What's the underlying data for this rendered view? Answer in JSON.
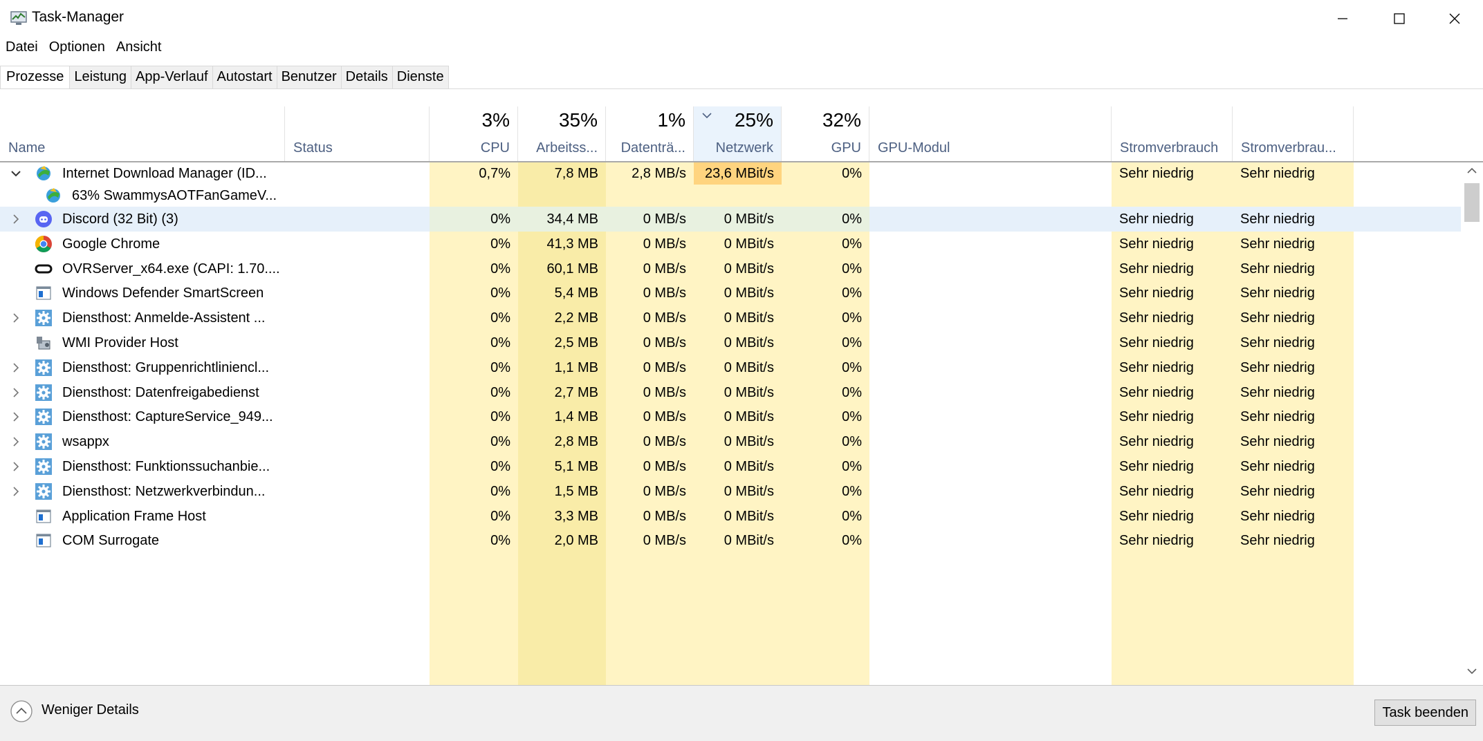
{
  "window": {
    "title": "Task-Manager",
    "icons": {
      "app": "task-manager-icon",
      "minimize": "minimize-icon",
      "maximize": "maximize-icon",
      "close": "close-icon"
    }
  },
  "menu": [
    "Datei",
    "Optionen",
    "Ansicht"
  ],
  "tabs": [
    "Prozesse",
    "Leistung",
    "App-Verlauf",
    "Autostart",
    "Benutzer",
    "Details",
    "Dienste"
  ],
  "active_tab": "Prozesse",
  "columns": {
    "name": {
      "label": "Name"
    },
    "status": {
      "label": "Status"
    },
    "cpu": {
      "label": "CPU",
      "pct": "3%"
    },
    "mem": {
      "label": "Arbeitss...",
      "pct": "35%"
    },
    "disk": {
      "label": "Datenträ...",
      "pct": "1%"
    },
    "net": {
      "label": "Netzwerk",
      "pct": "25%",
      "sorted": "descending"
    },
    "gpu": {
      "label": "GPU",
      "pct": "32%"
    },
    "gpuengine": {
      "label": "GPU-Modul"
    },
    "power": {
      "label": "Stromverbrauch"
    },
    "powertrend": {
      "label": "Stromverbrau..."
    }
  },
  "rows": [
    {
      "name": "Internet Download Manager (ID...",
      "expanded": true,
      "icon": "idm-icon",
      "cpu": "0,7%",
      "mem": "7,8 MB",
      "disk": "2,8 MB/s",
      "net": "23,6 MBit/s",
      "gpu": "0%",
      "power": "Sehr niedrig",
      "powertrend": "Sehr niedrig",
      "highlight": true
    },
    {
      "name": "63% SwammysAOTFanGameV...",
      "child": true,
      "icon": "idm-icon"
    },
    {
      "name": "Discord (32 Bit) (3)",
      "expandable": true,
      "icon": "discord-icon",
      "cpu": "0%",
      "mem": "34,4 MB",
      "disk": "0 MB/s",
      "net": "0 MBit/s",
      "gpu": "0%",
      "power": "Sehr niedrig",
      "powertrend": "Sehr niedrig",
      "selected": true
    },
    {
      "name": "Google Chrome",
      "icon": "chrome-icon",
      "cpu": "0%",
      "mem": "41,3 MB",
      "disk": "0 MB/s",
      "net": "0 MBit/s",
      "gpu": "0%",
      "power": "Sehr niedrig",
      "powertrend": "Sehr niedrig"
    },
    {
      "name": "OVRServer_x64.exe (CAPI: 1.70....",
      "icon": "oculus-icon",
      "cpu": "0%",
      "mem": "60,1 MB",
      "disk": "0 MB/s",
      "net": "0 MBit/s",
      "gpu": "0%",
      "power": "Sehr niedrig",
      "powertrend": "Sehr niedrig"
    },
    {
      "name": "Windows Defender SmartScreen",
      "icon": "window-icon",
      "cpu": "0%",
      "mem": "5,4 MB",
      "disk": "0 MB/s",
      "net": "0 MBit/s",
      "gpu": "0%",
      "power": "Sehr niedrig",
      "powertrend": "Sehr niedrig"
    },
    {
      "name": "Diensthost: Anmelde-Assistent ...",
      "expandable": true,
      "icon": "service-gear-icon",
      "cpu": "0%",
      "mem": "2,2 MB",
      "disk": "0 MB/s",
      "net": "0 MBit/s",
      "gpu": "0%",
      "power": "Sehr niedrig",
      "powertrend": "Sehr niedrig"
    },
    {
      "name": "WMI Provider Host",
      "icon": "wmi-icon",
      "cpu": "0%",
      "mem": "2,5 MB",
      "disk": "0 MB/s",
      "net": "0 MBit/s",
      "gpu": "0%",
      "power": "Sehr niedrig",
      "powertrend": "Sehr niedrig"
    },
    {
      "name": "Diensthost: Gruppenrichtliniencl...",
      "expandable": true,
      "icon": "service-gear-icon",
      "cpu": "0%",
      "mem": "1,1 MB",
      "disk": "0 MB/s",
      "net": "0 MBit/s",
      "gpu": "0%",
      "power": "Sehr niedrig",
      "powertrend": "Sehr niedrig"
    },
    {
      "name": "Diensthost: Datenfreigabedienst",
      "expandable": true,
      "icon": "service-gear-icon",
      "cpu": "0%",
      "mem": "2,7 MB",
      "disk": "0 MB/s",
      "net": "0 MBit/s",
      "gpu": "0%",
      "power": "Sehr niedrig",
      "powertrend": "Sehr niedrig"
    },
    {
      "name": "Diensthost: CaptureService_949...",
      "expandable": true,
      "icon": "service-gear-icon",
      "cpu": "0%",
      "mem": "1,4 MB",
      "disk": "0 MB/s",
      "net": "0 MBit/s",
      "gpu": "0%",
      "power": "Sehr niedrig",
      "powertrend": "Sehr niedrig"
    },
    {
      "name": "wsappx",
      "expandable": true,
      "icon": "service-gear-icon",
      "cpu": "0%",
      "mem": "2,8 MB",
      "disk": "0 MB/s",
      "net": "0 MBit/s",
      "gpu": "0%",
      "power": "Sehr niedrig",
      "powertrend": "Sehr niedrig"
    },
    {
      "name": "Diensthost: Funktionssuchanbie...",
      "expandable": true,
      "icon": "service-gear-icon",
      "cpu": "0%",
      "mem": "5,1 MB",
      "disk": "0 MB/s",
      "net": "0 MBit/s",
      "gpu": "0%",
      "power": "Sehr niedrig",
      "powertrend": "Sehr niedrig"
    },
    {
      "name": "Diensthost: Netzwerkverbindun...",
      "expandable": true,
      "icon": "service-gear-icon",
      "cpu": "0%",
      "mem": "1,5 MB",
      "disk": "0 MB/s",
      "net": "0 MBit/s",
      "gpu": "0%",
      "power": "Sehr niedrig",
      "powertrend": "Sehr niedrig"
    },
    {
      "name": "Application Frame Host",
      "icon": "window-icon",
      "cpu": "0%",
      "mem": "3,3 MB",
      "disk": "0 MB/s",
      "net": "0 MBit/s",
      "gpu": "0%",
      "power": "Sehr niedrig",
      "powertrend": "Sehr niedrig"
    },
    {
      "name": "COM Surrogate",
      "icon": "window-icon",
      "cpu": "0%",
      "mem": "2,0 MB",
      "disk": "0 MB/s",
      "net": "0 MBit/s",
      "gpu": "0%",
      "power": "Sehr niedrig",
      "powertrend": "Sehr niedrig"
    }
  ],
  "footer": {
    "fewer_details": "Weniger Details",
    "end_task": "Task beenden"
  },
  "colors": {
    "heat_light": "#fff4c4",
    "heat_mid": "#f9eca8",
    "heat_hot": "#ffd47f",
    "selected": "#e6f0fa",
    "header_text": "#4d6082"
  }
}
